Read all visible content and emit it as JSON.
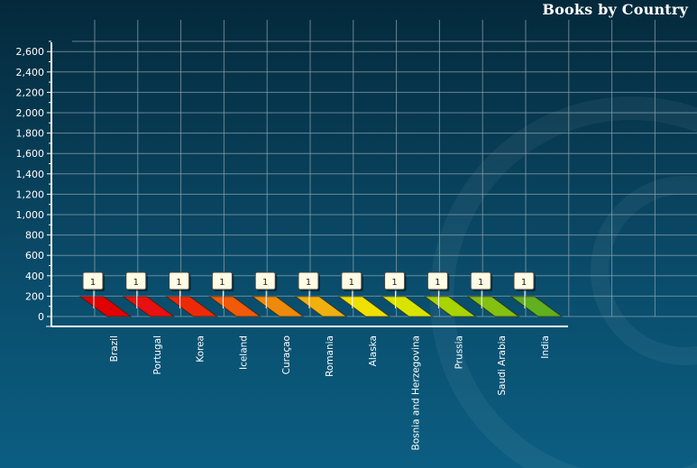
{
  "chart_data": {
    "type": "bar",
    "title": "Books by Country",
    "xlabel": "",
    "ylabel": "",
    "categories": [
      "Brazil",
      "Portugal",
      "Korea",
      "Iceland",
      "Curaçao",
      "Romania",
      "Alaska",
      "Bosnia and Herzegovina",
      "Prussia",
      "Saudi Arabia",
      "India"
    ],
    "values": [
      1,
      1,
      1,
      1,
      1,
      1,
      1,
      1,
      1,
      1,
      1
    ],
    "ylim": [
      0,
      2700
    ],
    "yticks": [
      0,
      200,
      400,
      600,
      800,
      1000,
      1200,
      1400,
      1600,
      1800,
      2000,
      2200,
      2400,
      2600
    ],
    "ytick_labels": [
      "0",
      "200",
      "400",
      "600",
      "800",
      "1,000",
      "1,200",
      "1,400",
      "1,600",
      "1,800",
      "2,000",
      "2,200",
      "2,400",
      "2,600"
    ],
    "grid": true,
    "legend": "none",
    "colors": [
      "#e00000",
      "#e81010",
      "#ec2a08",
      "#f05a08",
      "#ee8a0a",
      "#f0b010",
      "#f0e000",
      "#d8e400",
      "#a8d400",
      "#84c010",
      "#60b020"
    ]
  },
  "style": {
    "grid_color": "#8aa0ac",
    "axis_color": "#ffffff",
    "label_fill": "#fffbe4"
  }
}
